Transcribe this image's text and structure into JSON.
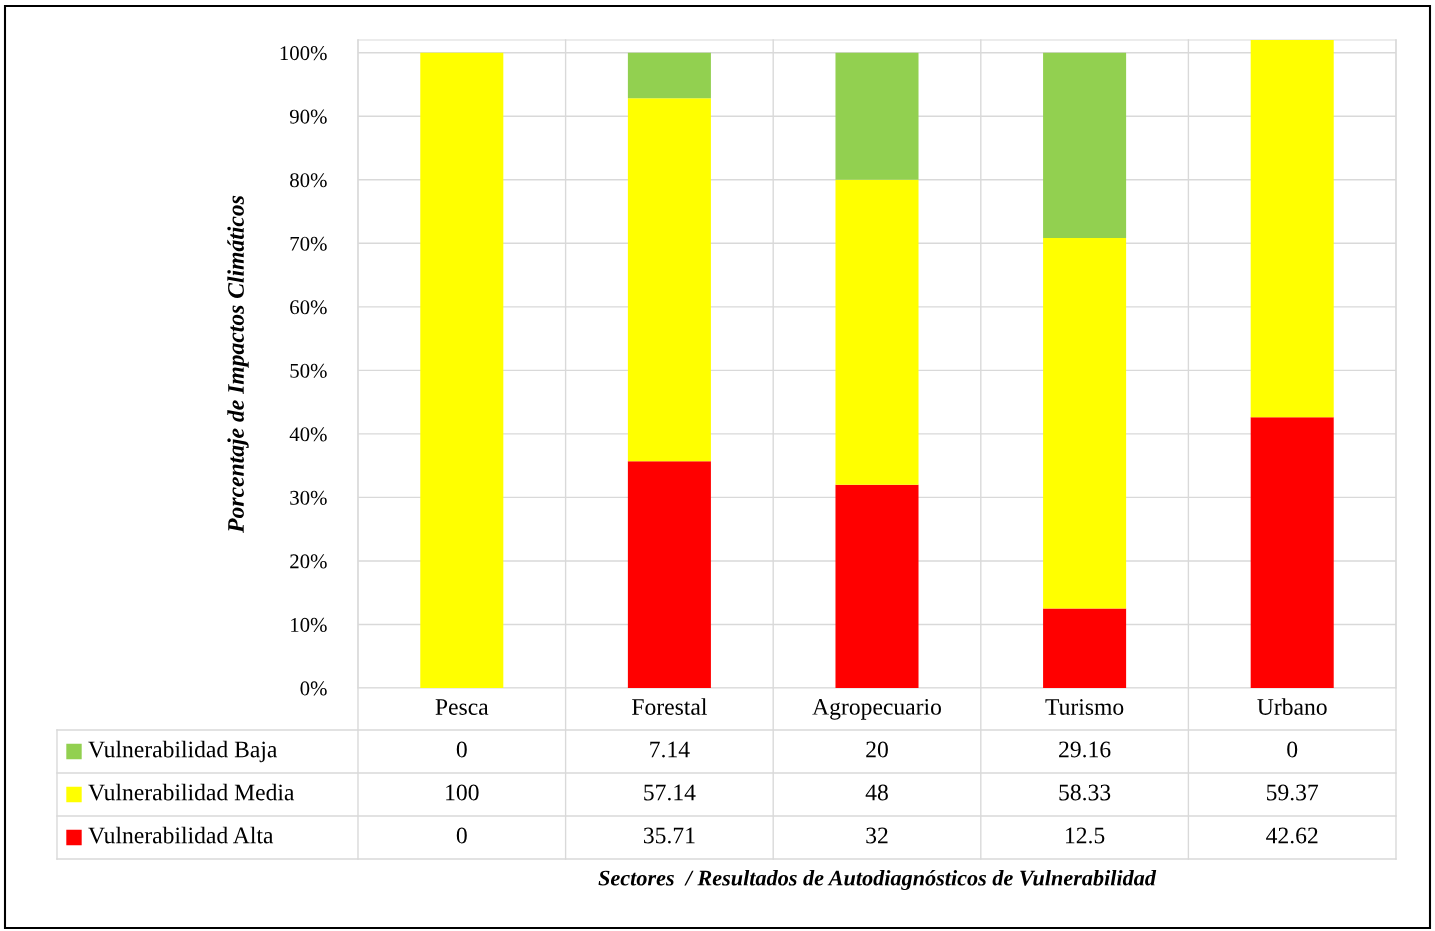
{
  "chart_data": {
    "type": "bar",
    "stacked": true,
    "categories": [
      "Pesca",
      "Forestal",
      "Agropecuario",
      "Turismo",
      "Urbano"
    ],
    "series": [
      {
        "name": "Vulnerabilidad Alta",
        "color": "#ff0000",
        "values": [
          0,
          35.71,
          32,
          12.5,
          42.62
        ]
      },
      {
        "name": "Vulnerabilidad Media",
        "color": "#ffff00",
        "values": [
          100,
          57.14,
          48,
          58.33,
          59.37
        ]
      },
      {
        "name": "Vulnerabilidad Baja",
        "color": "#92d050",
        "values": [
          0,
          7.14,
          20,
          29.16,
          0
        ]
      }
    ],
    "ylim": [
      0,
      102
    ],
    "yticks": [
      {
        "value": 0,
        "label": "0%"
      },
      {
        "value": 10,
        "label": "10%"
      },
      {
        "value": 20,
        "label": "20%"
      },
      {
        "value": 30,
        "label": "30%"
      },
      {
        "value": 40,
        "label": "40%"
      },
      {
        "value": 50,
        "label": "50%"
      },
      {
        "value": 60,
        "label": "60%"
      },
      {
        "value": 70,
        "label": "70%"
      },
      {
        "value": 80,
        "label": "80%"
      },
      {
        "value": 90,
        "label": "90%"
      },
      {
        "value": 100,
        "label": "100%"
      }
    ],
    "ylabel": "Porcentaje de Impactos Climáticos",
    "annotations": [
      "Sectores  / Resultados de Autodiagnósticos de Vulnerabilidad"
    ],
    "grid": "y",
    "legend": "bottom left",
    "data_labels": true
  }
}
